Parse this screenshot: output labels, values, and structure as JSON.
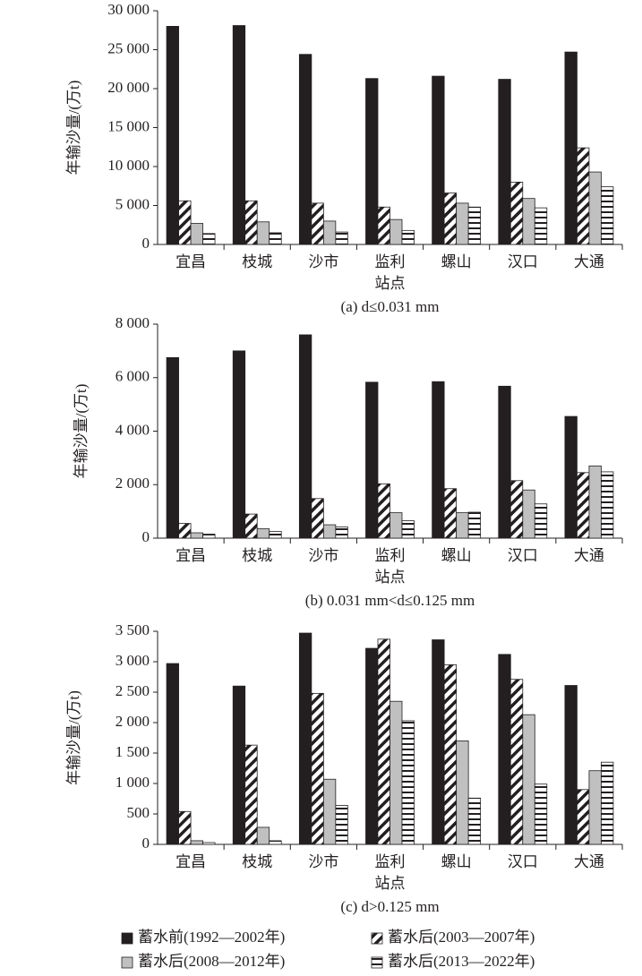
{
  "chart_data": [
    {
      "type": "bar",
      "subtitle": "(a) d≤0.031 mm",
      "y_label": "年输沙量/(万t)",
      "x_label": "站点",
      "categories": [
        "宜昌",
        "枝城",
        "沙市",
        "监利",
        "螺山",
        "汉口",
        "大通"
      ],
      "ylim": [
        0,
        30000
      ],
      "yticks": [
        0,
        {
          "value": 5000,
          "label": "5 000"
        },
        {
          "value": 10000,
          "label": "10 000"
        },
        {
          "value": 15000,
          "label": "15 000"
        },
        {
          "value": 20000,
          "label": "20 000"
        },
        {
          "value": 25000,
          "label": "25 000"
        },
        {
          "value": 30000,
          "label": "30 000"
        }
      ],
      "series": [
        {
          "color": "#231f20",
          "pattern": "solid",
          "values": [
            28000,
            28100,
            24400,
            21300,
            21600,
            21200,
            24700
          ]
        },
        {
          "color": "#231f20",
          "pattern": "diagonal",
          "values": [
            5600,
            5600,
            5300,
            4800,
            6600,
            8000,
            12400
          ]
        },
        {
          "color": "#c0c0c0",
          "pattern": "solid",
          "values": [
            2700,
            2900,
            3000,
            3200,
            5300,
            5900,
            9300
          ]
        },
        {
          "color": "#231f20",
          "pattern": "horizontal",
          "values": [
            1400,
            1500,
            1600,
            1800,
            4800,
            4700,
            7400
          ]
        }
      ]
    },
    {
      "type": "bar",
      "subtitle": "(b) 0.031 mm<d≤0.125 mm",
      "y_label": "年输沙量/(万t)",
      "x_label": "站点",
      "categories": [
        "宜昌",
        "枝城",
        "沙市",
        "监利",
        "螺山",
        "汉口",
        "大通"
      ],
      "ylim": [
        0,
        8000
      ],
      "yticks": [
        0,
        {
          "value": 2000,
          "label": "2 000"
        },
        {
          "value": 4000,
          "label": "4 000"
        },
        {
          "value": 6000,
          "label": "6 000"
        },
        {
          "value": 8000,
          "label": "8 000"
        }
      ],
      "series": [
        {
          "color": "#231f20",
          "pattern": "solid",
          "values": [
            6750,
            7000,
            7600,
            5830,
            5850,
            5680,
            4550
          ]
        },
        {
          "color": "#231f20",
          "pattern": "diagonal",
          "values": [
            550,
            900,
            1480,
            2030,
            1850,
            2150,
            2450
          ]
        },
        {
          "color": "#c0c0c0",
          "pattern": "solid",
          "values": [
            200,
            350,
            500,
            950,
            950,
            1800,
            2700
          ]
        },
        {
          "color": "#231f20",
          "pattern": "horizontal",
          "values": [
            150,
            250,
            420,
            650,
            970,
            1280,
            2480
          ]
        }
      ]
    },
    {
      "type": "bar",
      "subtitle": "(c) d>0.125 mm",
      "y_label": "年输沙量/(万t)",
      "x_label": "站点",
      "categories": [
        "宜昌",
        "枝城",
        "沙市",
        "监利",
        "螺山",
        "汉口",
        "大通"
      ],
      "ylim": [
        0,
        3500
      ],
      "yticks": [
        0,
        500,
        {
          "value": 1000,
          "label": "1 000"
        },
        {
          "value": 1500,
          "label": "1 500"
        },
        {
          "value": 2000,
          "label": "2 000"
        },
        {
          "value": 2500,
          "label": "2 500"
        },
        {
          "value": 3000,
          "label": "3 000"
        },
        {
          "value": 3500,
          "label": "3 500"
        }
      ],
      "series": [
        {
          "name": "蓄水前(1992—2002年)",
          "color": "#231f20",
          "pattern": "solid",
          "values": [
            2970,
            2600,
            3470,
            3220,
            3360,
            3120,
            2610
          ]
        },
        {
          "name": "蓄水后(2003—2007年)",
          "color": "#231f20",
          "pattern": "diagonal",
          "values": [
            540,
            1630,
            2480,
            3370,
            2950,
            2710,
            900
          ]
        },
        {
          "name": "蓄水后(2008—2012年)",
          "color": "#c0c0c0",
          "pattern": "solid",
          "values": [
            60,
            280,
            1070,
            2350,
            1700,
            2130,
            1210
          ]
        },
        {
          "name": "蓄水后(2013—2022年)",
          "color": "#231f20",
          "pattern": "horizontal",
          "values": [
            30,
            60,
            640,
            2030,
            760,
            990,
            1350
          ]
        }
      ]
    }
  ]
}
